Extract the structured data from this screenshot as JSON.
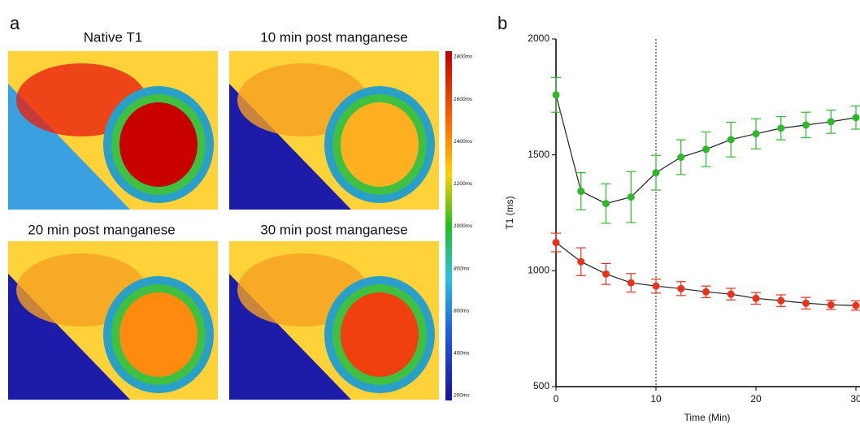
{
  "panel_a": {
    "label": "a",
    "titles": [
      "Native T1",
      "10 min post manganese",
      "20 min post manganese",
      "30 min post manganese"
    ],
    "colorbar": {
      "labels": [
        "1800ms",
        "1600ms",
        "1400ms",
        "1200ms",
        "1000ms",
        "800ms",
        "600ms",
        "400ms",
        "200ms"
      ]
    }
  },
  "chart_data": {
    "type": "line",
    "panel_label": "b",
    "x_label": "Time (Min)",
    "y_label": "T1 (ms)",
    "x": [
      0,
      2.5,
      5,
      7.5,
      10,
      12.5,
      15,
      17.5,
      20,
      22.5,
      25,
      27.5,
      30
    ],
    "series": [
      {
        "color": "#2db82d",
        "values": [
          1759,
          1343,
          1290,
          1318,
          1423,
          1490,
          1524,
          1566,
          1591,
          1615,
          1629,
          1643,
          1661
        ],
        "errors": [
          75,
          80,
          85,
          110,
          75,
          75,
          75,
          75,
          65,
          50,
          55,
          50,
          50
        ]
      },
      {
        "color": "#e8321e",
        "values": [
          1122,
          1039,
          986,
          948,
          934,
          923,
          909,
          899,
          881,
          871,
          860,
          853,
          850
        ],
        "errors": [
          40,
          60,
          45,
          40,
          30,
          30,
          25,
          25,
          25,
          25,
          25,
          20,
          20
        ]
      }
    ],
    "line_color": "#222",
    "vline": 10,
    "xlim": [
      0,
      30
    ],
    "ylim": [
      500,
      2000
    ],
    "xticks": [
      0,
      10,
      20,
      30
    ],
    "yticks": [
      500,
      1000,
      1500,
      2000
    ]
  }
}
